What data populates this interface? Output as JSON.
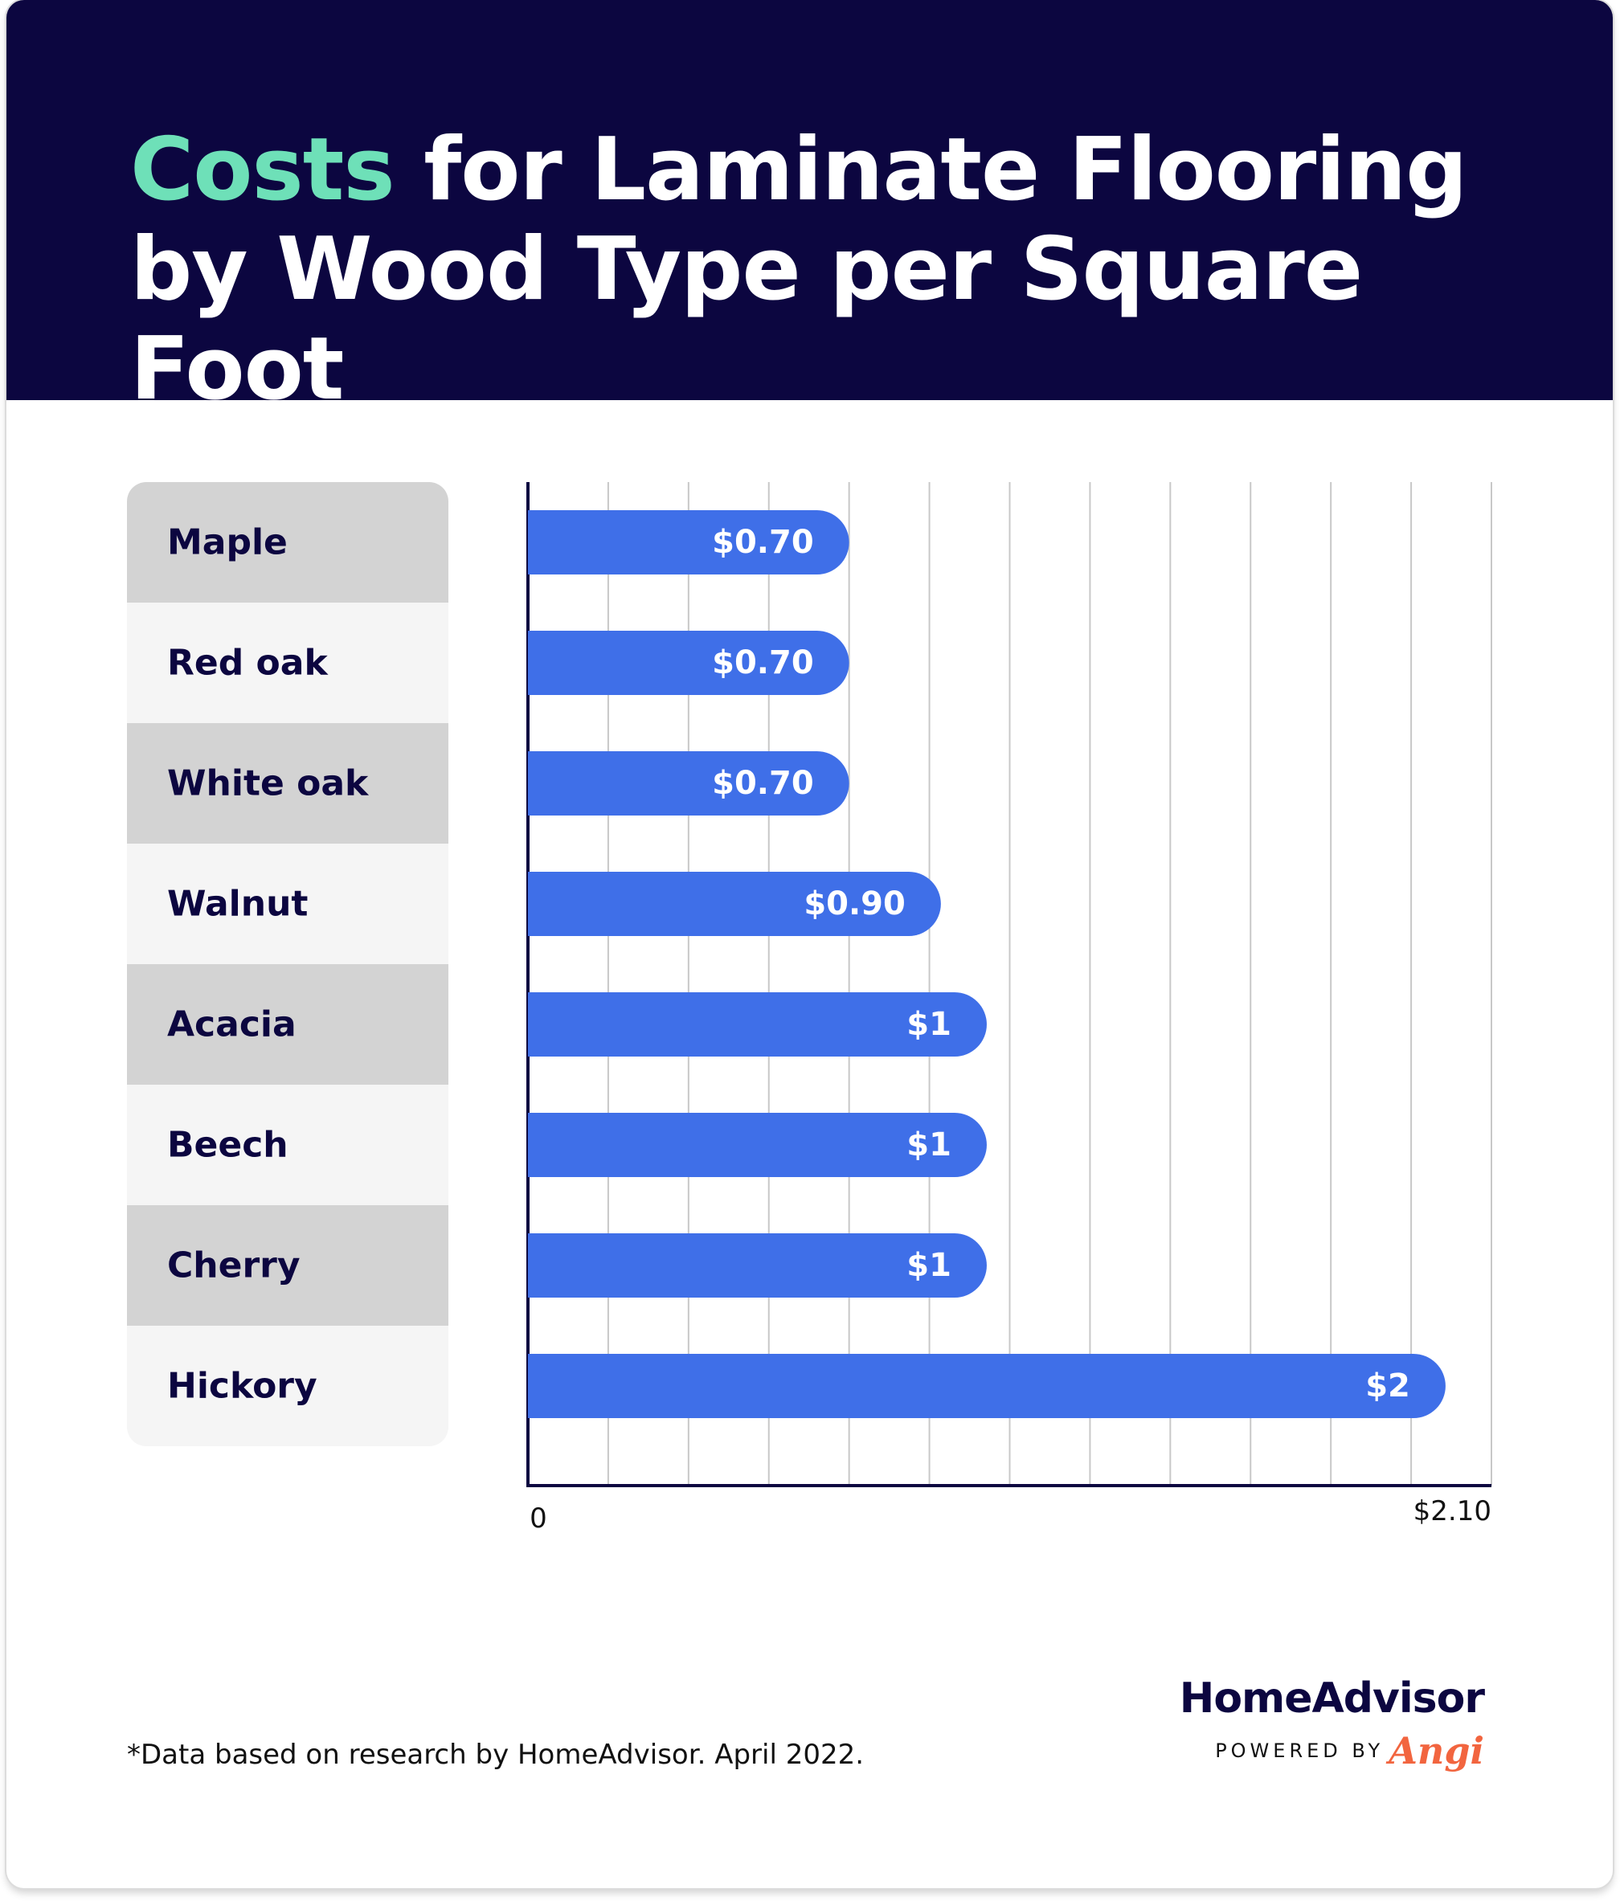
{
  "title": {
    "accent": "Costs",
    "rest": " for Laminate Flooring by Wood Type per Square Foot"
  },
  "chart_data": {
    "type": "bar",
    "orientation": "horizontal",
    "title": "Costs for Laminate Flooring by Wood Type per Square Foot",
    "categories": [
      "Maple",
      "Red oak",
      "White oak",
      "Walnut",
      "Acacia",
      "Beech",
      "Cherry",
      "Hickory"
    ],
    "values": [
      0.7,
      0.7,
      0.7,
      0.9,
      1,
      1,
      1,
      2
    ],
    "data_labels": [
      "$0.70",
      "$0.70",
      "$0.70",
      "$0.90",
      "$1",
      "$1",
      "$1",
      "$2"
    ],
    "xlim": [
      0,
      2.1
    ],
    "x_tick_labels": [
      "0",
      "$2.10"
    ],
    "grid": true,
    "colors": {
      "bar": "#3f6fe8",
      "label_band_dark": "#d3d3d3",
      "label_band_light": "#f5f5f5",
      "text": "#0c0640",
      "grid": "#c8c8c8"
    }
  },
  "footnote": "*Data based on research by HomeAdvisor. April 2022.",
  "brand": {
    "name": "HomeAdvisor",
    "powered_by": "POWERED BY",
    "partner": "Angi"
  },
  "colors": {
    "header_bg": "#0c0640",
    "title_accent": "#6ee0b8",
    "angi": "#f2653f"
  }
}
